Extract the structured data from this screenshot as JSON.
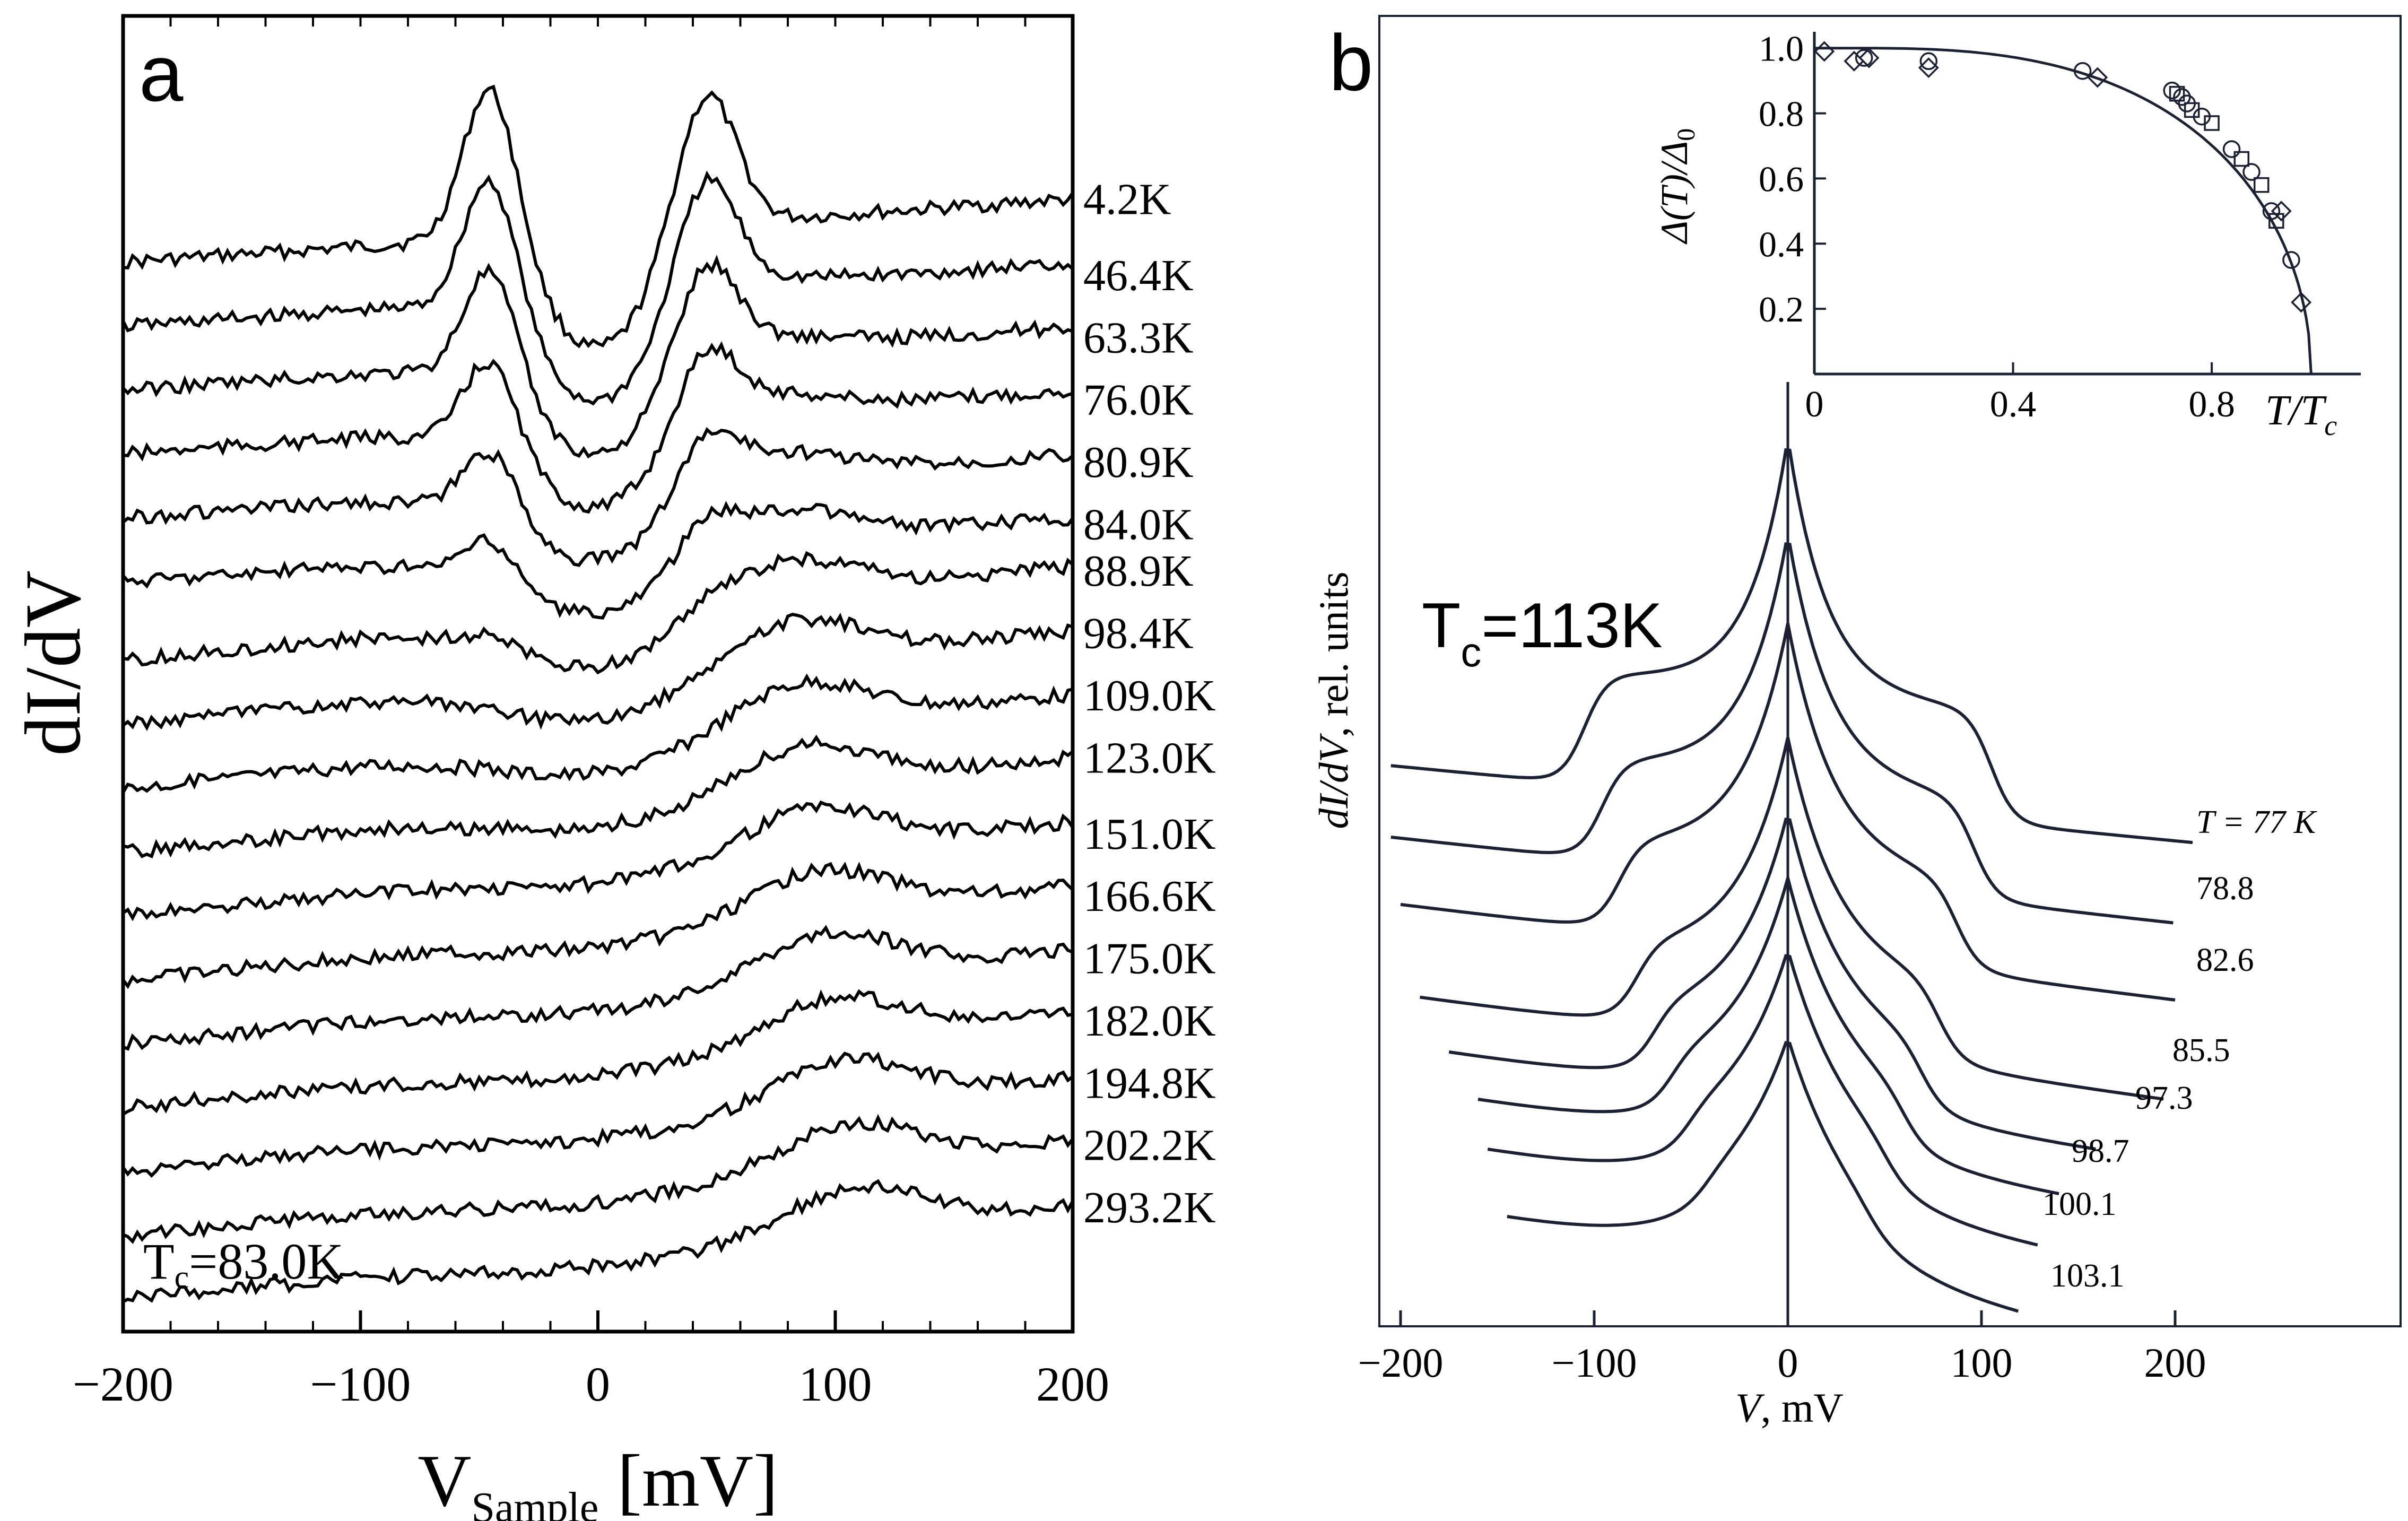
{
  "chart_data": [
    {
      "panel": "a",
      "type": "line",
      "title": "",
      "xlabel": "V",
      "xlabel_sub": "Sample",
      "xlabel_unit": " [mV]",
      "ylabel": "dI/dV",
      "xlim": [
        -200,
        200
      ],
      "xticks": [
        -200,
        -100,
        0,
        100,
        200
      ],
      "xtick_labels": [
        "−200",
        "−100",
        "0",
        "100",
        "200"
      ],
      "annotation": {
        "main": "T",
        "sub": "c",
        "rest": "=83.0K"
      },
      "grid": false,
      "legend": "curve labels at right end",
      "series": [
        {
          "name": "4.2K",
          "T": 4.2
        },
        {
          "name": "46.4K",
          "T": 46.4
        },
        {
          "name": "63.3K",
          "T": 63.3
        },
        {
          "name": "76.0K",
          "T": 76.0
        },
        {
          "name": "80.9K",
          "T": 80.9
        },
        {
          "name": "84.0K",
          "T": 84.0
        },
        {
          "name": "88.9K",
          "T": 88.9
        },
        {
          "name": "98.4K",
          "T": 98.4
        },
        {
          "name": "109.0K",
          "T": 109.0
        },
        {
          "name": "123.0K",
          "T": 123.0
        },
        {
          "name": "151.0K",
          "T": 151.0
        },
        {
          "name": "166.6K",
          "T": 166.6
        },
        {
          "name": "175.0K",
          "T": 175.0
        },
        {
          "name": "182.0K",
          "T": 182.0
        },
        {
          "name": "194.8K",
          "T": 194.8
        },
        {
          "name": "202.2K",
          "T": 202.2
        },
        {
          "name": "293.2K",
          "T": 293.2
        }
      ]
    },
    {
      "panel": "b",
      "type": "line",
      "title": "",
      "xlabel": "V",
      "xlabel_unit": ", mV",
      "ylabel": "dI/dV",
      "ylabel_unit": ", rel. units",
      "xlim": [
        -200,
        200
      ],
      "xticks": [
        -200,
        -100,
        0,
        100,
        200
      ],
      "xtick_labels": [
        "−200",
        "−100",
        "0",
        "100",
        "200"
      ],
      "annotation": {
        "main": "T",
        "sub": "c",
        "rest": "=113K"
      },
      "grid": false,
      "legend": "curve labels at right end",
      "series": [
        {
          "name": "T = 77 K",
          "T": 77,
          "xrange": [
            -205,
            210
          ]
        },
        {
          "name": "78.8",
          "T": 78.8,
          "xrange": [
            -205,
            200
          ]
        },
        {
          "name": "82.6",
          "T": 82.6,
          "xrange": [
            -200,
            200
          ]
        },
        {
          "name": "85.5",
          "T": 85.5,
          "xrange": [
            -190,
            195
          ]
        },
        {
          "name": "97.3",
          "T": 97.3,
          "xrange": [
            -175,
            160
          ]
        },
        {
          "name": "98.7",
          "T": 98.7,
          "xrange": [
            -160,
            140
          ]
        },
        {
          "name": "100.1",
          "T": 100.1,
          "xrange": [
            -155,
            130
          ]
        },
        {
          "name": "103.1",
          "T": 103.1,
          "xrange": [
            -145,
            120
          ]
        }
      ],
      "inset": {
        "type": "scatter",
        "xlabel": "T/T",
        "xlabel_sub": "c",
        "ylabel": "Δ(T)/Δ",
        "ylabel_sub": "0",
        "xlim": [
          0,
          1.1
        ],
        "ylim": [
          0,
          1.05
        ],
        "xticks": [
          0,
          0.4,
          0.8
        ],
        "xtick_labels": [
          "0",
          "0.4",
          "0.8"
        ],
        "yticks": [
          0.2,
          0.4,
          0.6,
          0.8,
          1.0
        ],
        "ytick_labels": [
          "0.2",
          "0.4",
          "0.6",
          "0.8",
          "1.0"
        ],
        "points": [
          {
            "x": 0.02,
            "y": 0.99,
            "m": "diamond"
          },
          {
            "x": 0.08,
            "y": 0.96,
            "m": "diamond"
          },
          {
            "x": 0.1,
            "y": 0.97,
            "m": "circle"
          },
          {
            "x": 0.11,
            "y": 0.97,
            "m": "diamond"
          },
          {
            "x": 0.23,
            "y": 0.96,
            "m": "circle"
          },
          {
            "x": 0.23,
            "y": 0.94,
            "m": "diamond"
          },
          {
            "x": 0.54,
            "y": 0.93,
            "m": "circle"
          },
          {
            "x": 0.57,
            "y": 0.91,
            "m": "diamond"
          },
          {
            "x": 0.72,
            "y": 0.87,
            "m": "circle"
          },
          {
            "x": 0.73,
            "y": 0.86,
            "m": "square"
          },
          {
            "x": 0.74,
            "y": 0.85,
            "m": "circle"
          },
          {
            "x": 0.75,
            "y": 0.83,
            "m": "circle"
          },
          {
            "x": 0.76,
            "y": 0.81,
            "m": "square"
          },
          {
            "x": 0.78,
            "y": 0.79,
            "m": "circle"
          },
          {
            "x": 0.8,
            "y": 0.77,
            "m": "square"
          },
          {
            "x": 0.84,
            "y": 0.69,
            "m": "circle"
          },
          {
            "x": 0.86,
            "y": 0.66,
            "m": "square"
          },
          {
            "x": 0.88,
            "y": 0.62,
            "m": "circle"
          },
          {
            "x": 0.9,
            "y": 0.58,
            "m": "square"
          },
          {
            "x": 0.92,
            "y": 0.5,
            "m": "circle"
          },
          {
            "x": 0.93,
            "y": 0.47,
            "m": "square"
          },
          {
            "x": 0.94,
            "y": 0.5,
            "m": "diamond"
          },
          {
            "x": 0.96,
            "y": 0.35,
            "m": "circle"
          },
          {
            "x": 0.98,
            "y": 0.22,
            "m": "diamond"
          }
        ],
        "fit_curve": "BCS-like Δ(T)/Δ0 vs T/Tc"
      }
    }
  ],
  "panel_labels": [
    "a",
    "b"
  ]
}
